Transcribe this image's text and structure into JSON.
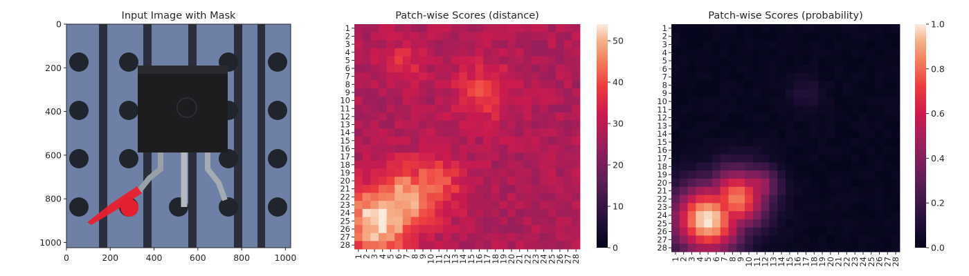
{
  "chart_data": [
    {
      "type": "image",
      "title": "Input Image with Mask",
      "xlabel": "",
      "ylabel": "",
      "xlim": [
        0,
        1024
      ],
      "ylim": [
        1024,
        0
      ],
      "x_ticks": [
        0,
        200,
        400,
        600,
        800,
        1000
      ],
      "y_ticks": [
        0,
        200,
        400,
        600,
        800,
        1000
      ],
      "mask_color": "#e8202e",
      "board_color": "#6f80a6",
      "hole_color": "#272b35",
      "component_color": "#1d1c1f"
    },
    {
      "type": "heatmap",
      "title": "Patch-wise Scores (distance)",
      "rows": 28,
      "cols": 28,
      "row_labels": [
        "1",
        "2",
        "3",
        "4",
        "5",
        "6",
        "7",
        "8",
        "9",
        "10",
        "11",
        "12",
        "13",
        "14",
        "15",
        "16",
        "17",
        "18",
        "19",
        "20",
        "21",
        "22",
        "23",
        "24",
        "25",
        "26",
        "27",
        "28"
      ],
      "col_labels": [
        "1",
        "2",
        "3",
        "4",
        "5",
        "6",
        "7",
        "8",
        "9",
        "10",
        "11",
        "12",
        "13",
        "14",
        "15",
        "16",
        "17",
        "18",
        "19",
        "20",
        "21",
        "22",
        "23",
        "24",
        "25",
        "26",
        "27",
        "28"
      ],
      "vmin": 0,
      "vmax": 54,
      "colorbar_ticks": [
        "0",
        "10",
        "20",
        "30",
        "40",
        "50"
      ],
      "colormap": "rocket",
      "baseline": 28,
      "hotspots": [
        {
          "row": 25,
          "col": 3.5,
          "radius": 3.2,
          "peak": 54
        },
        {
          "row": 22.5,
          "col": 6.5,
          "radius": 3.0,
          "peak": 50
        },
        {
          "row": 20.5,
          "col": 10,
          "radius": 2.6,
          "peak": 44
        },
        {
          "row": 9,
          "col": 16.5,
          "radius": 2.5,
          "peak": 40
        },
        {
          "row": 5.5,
          "col": 6.5,
          "radius": 2.0,
          "peak": 36
        }
      ]
    },
    {
      "type": "heatmap",
      "title": "Patch-wise Scores (probability)",
      "rows": 28,
      "cols": 28,
      "row_labels": [
        "1",
        "2",
        "3",
        "4",
        "5",
        "6",
        "7",
        "8",
        "9",
        "10",
        "11",
        "12",
        "13",
        "14",
        "15",
        "16",
        "17",
        "18",
        "19",
        "20",
        "21",
        "22",
        "23",
        "24",
        "25",
        "26",
        "27",
        "28"
      ],
      "col_labels": [
        "1",
        "2",
        "3",
        "4",
        "5",
        "6",
        "7",
        "8",
        "9",
        "10",
        "11",
        "12",
        "13",
        "14",
        "15",
        "16",
        "17",
        "18",
        "19",
        "20",
        "21",
        "22",
        "23",
        "24",
        "25",
        "26",
        "27",
        "28"
      ],
      "vmin": 0,
      "vmax": 1,
      "colorbar_ticks": [
        "0.0",
        "0.2",
        "0.4",
        "0.6",
        "0.8",
        "1.0"
      ],
      "colormap": "rocket",
      "baseline": 0.02,
      "hotspots": [
        {
          "row": 24.5,
          "col": 5,
          "radius": 3.0,
          "peak": 1.0
        },
        {
          "row": 22,
          "col": 8.5,
          "radius": 2.6,
          "peak": 0.85
        },
        {
          "row": 20.5,
          "col": 11,
          "radius": 1.8,
          "peak": 0.55
        },
        {
          "row": 9,
          "col": 17,
          "radius": 1.5,
          "peak": 0.12
        }
      ]
    }
  ]
}
